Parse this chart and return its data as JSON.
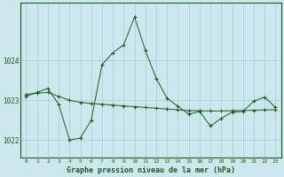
{
  "xlabel": "Graphe pression niveau de la mer (hPa)",
  "bg_color": "#cce8ee",
  "grid_color": "#a8cdd4",
  "line_color": "#1a5c1a",
  "ylim": [
    1021.55,
    1025.45
  ],
  "yticks": [
    1022,
    1023,
    1024
  ],
  "hours": [
    0,
    1,
    2,
    3,
    4,
    5,
    6,
    7,
    8,
    9,
    10,
    11,
    12,
    13,
    14,
    15,
    16,
    17,
    18,
    19,
    20,
    21,
    22,
    23
  ],
  "line_smooth": [
    1023.15,
    1023.18,
    1023.2,
    1023.1,
    1023.0,
    1022.95,
    1022.92,
    1022.9,
    1022.88,
    1022.86,
    1022.84,
    1022.82,
    1022.8,
    1022.78,
    1022.76,
    1022.74,
    1022.74,
    1022.73,
    1022.73,
    1022.74,
    1022.74,
    1022.75,
    1022.76,
    1022.76
  ],
  "line_jagged": [
    1023.1,
    1023.2,
    1023.3,
    1022.9,
    1022.0,
    1022.05,
    1022.5,
    1023.9,
    1024.2,
    1024.4,
    1025.1,
    1024.25,
    1023.55,
    1023.05,
    1022.85,
    1022.65,
    1022.72,
    1022.35,
    1022.55,
    1022.7,
    1022.72,
    1022.98,
    1023.08,
    1022.82
  ]
}
